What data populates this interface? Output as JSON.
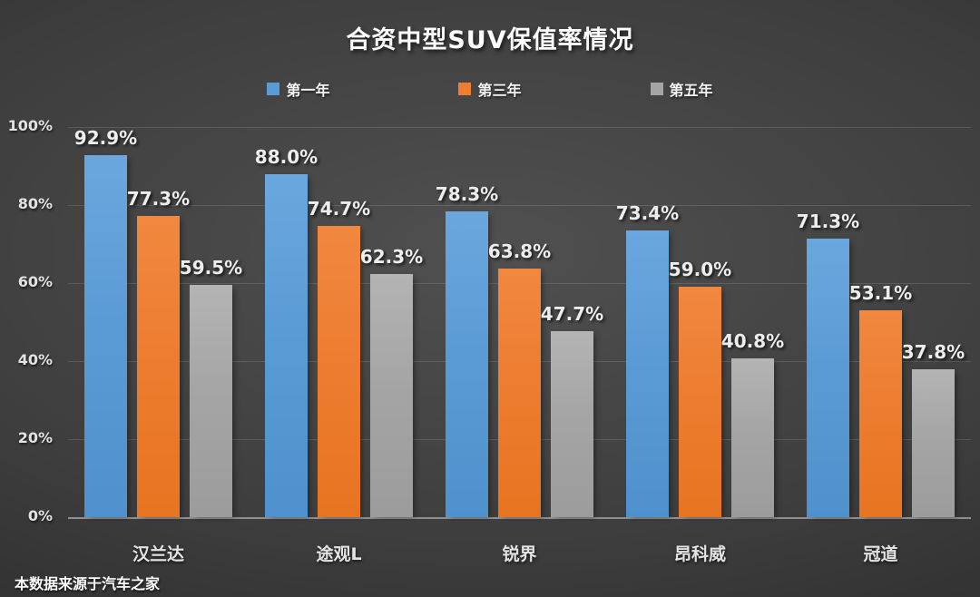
{
  "chart_data": {
    "type": "bar",
    "title": "合资中型SUV保值率情况",
    "categories": [
      "汉兰达",
      "途观L",
      "锐界",
      "昂科威",
      "冠道"
    ],
    "series": [
      {
        "name": "第一年",
        "color": "#5b9bd5",
        "values": [
          92.9,
          88.0,
          78.3,
          73.4,
          71.3
        ],
        "labels": [
          "92.9%",
          "88.0%",
          "78.3%",
          "73.4%",
          "71.3%"
        ]
      },
      {
        "name": "第三年",
        "color": "#ed7d31",
        "values": [
          77.3,
          74.7,
          63.8,
          59.0,
          53.1
        ],
        "labels": [
          "77.3%",
          "74.7%",
          "63.8%",
          "59.0%",
          "53.1%"
        ]
      },
      {
        "name": "第五年",
        "color": "#a5a5a5",
        "values": [
          59.5,
          62.3,
          47.7,
          40.8,
          37.8
        ],
        "labels": [
          "59.5%",
          "62.3%",
          "47.7%",
          "40.8%",
          "37.8%"
        ]
      }
    ],
    "y_axis": {
      "min": 0,
      "max": 100,
      "step": 20,
      "ticks": [
        "100%",
        "80%",
        "60%",
        "40%",
        "20%",
        "0%"
      ]
    },
    "grid": true,
    "legend_position": "top",
    "source": "本数据来源于汽车之家"
  }
}
